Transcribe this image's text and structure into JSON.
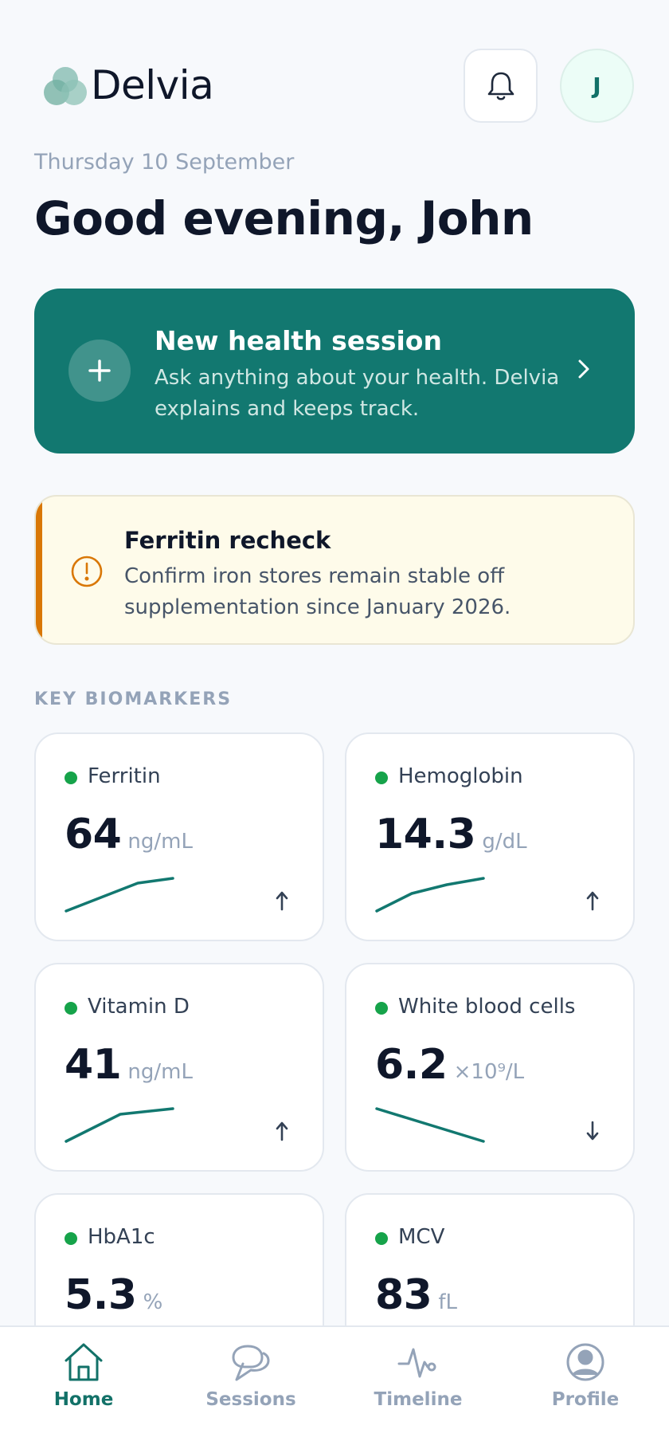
{
  "app": {
    "brand": "Delvia"
  },
  "header": {
    "bell_icon": "bell-icon",
    "avatar_initial": "J"
  },
  "date": "Thursday 10 September",
  "greeting": "Good evening, John",
  "session_card": {
    "title": "New health session",
    "description": "Ask anything about your health. Delvia explains and keeps track.",
    "icon": "plus-icon",
    "chevron": "chevron-right-icon",
    "color": "#127870"
  },
  "alert": {
    "title": "Ferritin recheck",
    "description": "Confirm iron stores remain stable off supplementation since January 2026.",
    "icon": "alert-circle-icon",
    "accent": "#d97706"
  },
  "section_label": "KEY BIOMARKERS",
  "biomarkers": [
    {
      "name": "Ferritin",
      "value": "64",
      "unit": "ng/mL",
      "trend": "↑",
      "status_color": "#16a34a"
    },
    {
      "name": "Hemoglobin",
      "value": "14.3",
      "unit": "g/dL",
      "trend": "↑",
      "status_color": "#16a34a"
    },
    {
      "name": "Vitamin D",
      "value": "41",
      "unit": "ng/mL",
      "trend": "↑",
      "status_color": "#16a34a"
    },
    {
      "name": "White blood cells",
      "value": "6.2",
      "unit": "×10⁹/L",
      "trend": "↓",
      "status_color": "#16a34a"
    },
    {
      "name": "HbA1c",
      "value": "5.3",
      "unit": "%",
      "trend": "",
      "status_color": "#16a34a"
    },
    {
      "name": "MCV",
      "value": "83",
      "unit": "fL",
      "trend": "",
      "status_color": "#16a34a"
    }
  ],
  "tabs": [
    {
      "label": "Home",
      "icon": "home-icon",
      "active": true
    },
    {
      "label": "Sessions",
      "icon": "chat-icon",
      "active": false
    },
    {
      "label": "Timeline",
      "icon": "pulse-icon",
      "active": false
    },
    {
      "label": "Profile",
      "icon": "user-icon",
      "active": false
    }
  ],
  "colors": {
    "accent": "#127168",
    "background": "#f7f9fc"
  }
}
